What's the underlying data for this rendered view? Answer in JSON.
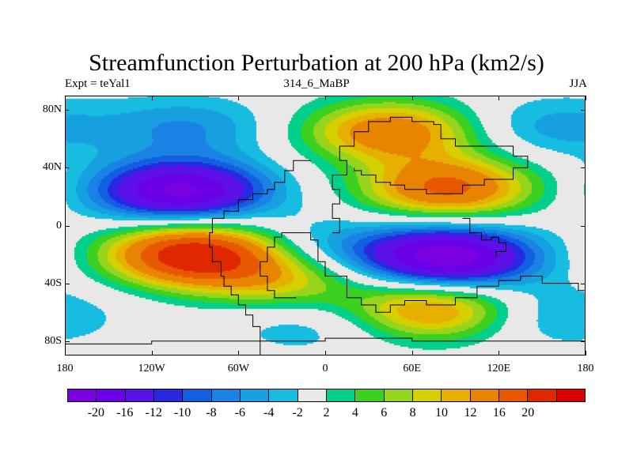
{
  "title": "Streamfunction Perturbation at 200 hPa (km2/s)",
  "subtitle_left": "Expt = teYal1",
  "subtitle_center": "314_6_MaBP",
  "subtitle_right": "JJA",
  "lat_ticks": [
    {
      "label": "80N",
      "lat": 80
    },
    {
      "label": "40N",
      "lat": 40
    },
    {
      "label": "0",
      "lat": 0
    },
    {
      "label": "40S",
      "lat": -40
    },
    {
      "label": "80S",
      "lat": -80
    }
  ],
  "lon_ticks": [
    {
      "label": "180",
      "lon": -180
    },
    {
      "label": "120W",
      "lon": -120
    },
    {
      "label": "60W",
      "lon": -60
    },
    {
      "label": "0",
      "lon": 0
    },
    {
      "label": "60E",
      "lon": 60
    },
    {
      "label": "120E",
      "lon": 120
    },
    {
      "label": "180",
      "lon": 180
    }
  ],
  "colorbar": {
    "colors": [
      "#7b00e0",
      "#6a00e8",
      "#5a10e6",
      "#2828e0",
      "#1060e0",
      "#1a82e4",
      "#17a0e0",
      "#16bde0",
      "#e8e8e8",
      "#00d08a",
      "#3cd020",
      "#96d51c",
      "#d6d000",
      "#e6b000",
      "#e88400",
      "#e85800",
      "#e02800",
      "#dc0000"
    ],
    "labels": [
      "-20",
      "-16",
      "-12",
      "-10",
      "-8",
      "-6",
      "-4",
      "-2",
      "2",
      "4",
      "6",
      "8",
      "10",
      "12",
      "16",
      "20"
    ]
  },
  "field": {
    "lon_range": [
      -180,
      180
    ],
    "lat_range": [
      -90,
      90
    ],
    "levels": [
      -20,
      -16,
      -12,
      -10,
      -8,
      -6,
      -4,
      -2,
      2,
      4,
      6,
      8,
      10,
      12,
      16,
      20
    ],
    "features": [
      {
        "name": "low-north-pacific",
        "lon": -100,
        "lat": 24,
        "amp": -21
      },
      {
        "name": "high-south-pacific",
        "lon": -90,
        "lat": -20,
        "amp": 24
      },
      {
        "name": "low-indian-ocean",
        "lon": 85,
        "lat": -22,
        "amp": -23
      },
      {
        "name": "high-asia",
        "lon": 85,
        "lat": 26,
        "amp": 17
      },
      {
        "name": "high-arctic-eurasia",
        "lon": 45,
        "lat": 65,
        "amp": 15
      },
      {
        "name": "high-south-indian",
        "lon": 75,
        "lat": -58,
        "amp": 14
      },
      {
        "name": "high-south-atlantic",
        "lon": -30,
        "lat": -38,
        "amp": 9
      },
      {
        "name": "low-north-atlantic",
        "lon": -95,
        "lat": 68,
        "amp": -6
      },
      {
        "name": "low-north-pacific-east",
        "lon": 155,
        "lat": 68,
        "amp": -5
      },
      {
        "name": "low-southern-ocean-west",
        "lon": -10,
        "lat": -68,
        "amp": -4
      },
      {
        "name": "low-southern-ocean-east",
        "lon": 155,
        "lat": -62,
        "amp": -5
      },
      {
        "name": "low-south-atlantic-north",
        "lon": -5,
        "lat": -15,
        "amp": -5
      }
    ]
  }
}
